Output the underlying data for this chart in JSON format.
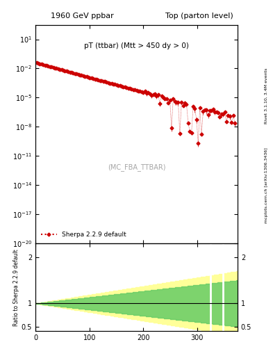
{
  "title_left": "1960 GeV ppbar",
  "title_right": "Top (parton level)",
  "main_label": "pT (ttbar) (Mtt > 450 dy > 0)",
  "watermark": "(MC_FBA_TTBAR)",
  "right_label_top": "Rivet 3.1.10, 3.4M events",
  "right_label_bot": "mcplots.cern.ch [arXiv:1306.3436]",
  "legend_label": "Sherpa 2.2.9 default",
  "xlim": [
    0,
    375
  ],
  "ylim_main": [
    1e-20,
    300.0
  ],
  "ylim_ratio": [
    0.4,
    2.3
  ],
  "ylabel_ratio": "Ratio to Sherpa 2.2.9 default",
  "line_color": "#cc0000",
  "marker": "D",
  "marker_size": 2.5,
  "bg_color": "#ffffff",
  "ratio_green_color": "#66cc66",
  "ratio_yellow_color": "#ffff99",
  "ratio_line_color": "#000000"
}
